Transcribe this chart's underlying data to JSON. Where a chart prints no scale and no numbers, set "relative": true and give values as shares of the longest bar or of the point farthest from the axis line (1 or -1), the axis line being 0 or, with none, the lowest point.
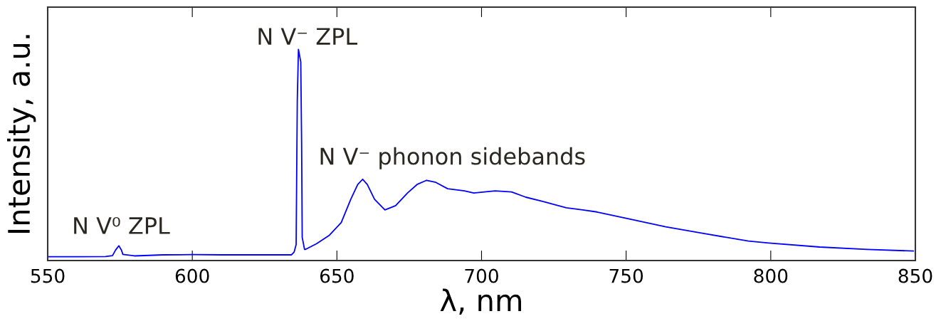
{
  "chart_data": {
    "type": "line",
    "relative": true,
    "xlabel": "λ, nm",
    "ylabel": "Intensity, a.u.",
    "xlim": [
      550,
      850
    ],
    "xticks": [
      550,
      600,
      650,
      700,
      750,
      800,
      850
    ],
    "grid": false,
    "legend": false,
    "series": [
      {
        "color": "#0000ff",
        "x": [
          550,
          560,
          570,
          572.4,
          573.5,
          574.6,
          575.5,
          576,
          580,
          590,
          600,
          610,
          620,
          630,
          634.3,
          635.2,
          635.9,
          636.3,
          636.7,
          637.1,
          637.5,
          637.8,
          638.0,
          638.8,
          639.2,
          643,
          647.4,
          651.5,
          654.8,
          657.2,
          658.9,
          660.5,
          663.0,
          666.6,
          670.3,
          674.4,
          677.7,
          681.0,
          684.2,
          688.3,
          694.1,
          697.3,
          704.7,
          710.4,
          715.3,
          721.1,
          729.3,
          735,
          739.9,
          750,
          763.7,
          776,
          792.3,
          799.3,
          816.9,
          833.3,
          849.3
        ],
        "values": [
          0.018,
          0.018,
          0.019,
          0.023,
          0.05,
          0.07,
          0.05,
          0.029,
          0.022,
          0.027,
          0.028,
          0.027,
          0.027,
          0.027,
          0.027,
          0.04,
          0.076,
          0.76,
          1.0,
          0.97,
          0.94,
          0.55,
          0.11,
          0.053,
          0.053,
          0.08,
          0.12,
          0.18,
          0.29,
          0.36,
          0.385,
          0.36,
          0.29,
          0.24,
          0.26,
          0.32,
          0.36,
          0.38,
          0.37,
          0.34,
          0.33,
          0.32,
          0.33,
          0.325,
          0.3,
          0.28,
          0.25,
          0.24,
          0.23,
          0.2,
          0.16,
          0.13,
          0.092,
          0.083,
          0.064,
          0.053,
          0.045
        ]
      }
    ],
    "annotations": [
      {
        "text": "N V⁰ ZPL",
        "x": 574.6,
        "y": 0.07
      },
      {
        "text": "N V⁻ ZPL",
        "x": 636.7,
        "y": 1.0
      },
      {
        "text": "N V⁻ phonon sidebands",
        "x": 658.9,
        "y": 0.385
      }
    ]
  }
}
